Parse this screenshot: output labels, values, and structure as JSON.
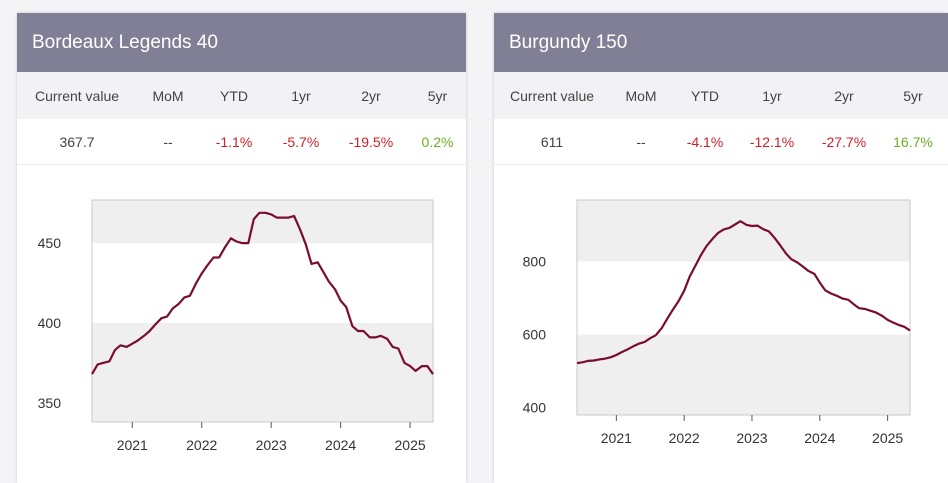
{
  "columns": [
    "Current value",
    "MoM",
    "YTD",
    "1yr",
    "2yr",
    "5yr"
  ],
  "colors": {
    "header_bg": "#807f96",
    "line": "#7a0c2e",
    "negative": "#d0202a",
    "positive": "#6ab023"
  },
  "panels": [
    {
      "title": "Bordeaux Legends 40",
      "stats": {
        "current": "367.7",
        "mom": "--",
        "ytd": "-1.1%",
        "yr1": "-5.7%",
        "yr2": "-19.5%",
        "yr5": "0.2%"
      }
    },
    {
      "title": "Burgundy 150",
      "stats": {
        "current": "611",
        "mom": "--",
        "ytd": "-4.1%",
        "yr1": "-12.1%",
        "yr2": "-27.7%",
        "yr5": "16.7%"
      }
    }
  ],
  "chart_data": [
    {
      "type": "line",
      "title": "Bordeaux Legends 40",
      "xlim": [
        2020.42,
        2025.33
      ],
      "ylim": [
        338,
        477
      ],
      "yticks": [
        350,
        400,
        450
      ],
      "xticks": [
        2021,
        2022,
        2023,
        2024,
        2025
      ],
      "grid": "alternating bands",
      "x": [
        2020.42,
        2020.5,
        2020.58,
        2020.67,
        2020.75,
        2020.83,
        2020.92,
        2021.0,
        2021.08,
        2021.17,
        2021.25,
        2021.33,
        2021.42,
        2021.5,
        2021.58,
        2021.67,
        2021.75,
        2021.83,
        2021.92,
        2022.0,
        2022.08,
        2022.17,
        2022.25,
        2022.33,
        2022.42,
        2022.5,
        2022.58,
        2022.67,
        2022.75,
        2022.83,
        2022.92,
        2023.0,
        2023.08,
        2023.17,
        2023.25,
        2023.33,
        2023.42,
        2023.5,
        2023.58,
        2023.67,
        2023.75,
        2023.83,
        2023.92,
        2024.0,
        2024.08,
        2024.17,
        2024.25,
        2024.33,
        2024.42,
        2024.5,
        2024.58,
        2024.67,
        2024.75,
        2024.83,
        2024.92,
        2025.0,
        2025.08,
        2025.17,
        2025.25,
        2025.33
      ],
      "series": [
        {
          "values": [
            368,
            374,
            375,
            376,
            383,
            386,
            385,
            387,
            389,
            392,
            395,
            399,
            403,
            404,
            409,
            412,
            416,
            417,
            425,
            431,
            436,
            441,
            441,
            447,
            453,
            451,
            450,
            450,
            465,
            469,
            469,
            468,
            466,
            466,
            466,
            467,
            458,
            449,
            437,
            438,
            432,
            426,
            421,
            414,
            410,
            398,
            395,
            395,
            391,
            391,
            392,
            390,
            385,
            384,
            375,
            373,
            370,
            373,
            373,
            368
          ]
        }
      ]
    },
    {
      "type": "line",
      "title": "Burgundy 150",
      "xlim": [
        2020.42,
        2025.33
      ],
      "ylim": [
        380,
        968
      ],
      "yticks": [
        400,
        600,
        800
      ],
      "xticks": [
        2021,
        2022,
        2023,
        2024,
        2025
      ],
      "grid": "alternating bands",
      "x": [
        2020.42,
        2020.5,
        2020.58,
        2020.67,
        2020.75,
        2020.83,
        2020.92,
        2021.0,
        2021.08,
        2021.17,
        2021.25,
        2021.33,
        2021.42,
        2021.5,
        2021.58,
        2021.67,
        2021.75,
        2021.83,
        2021.92,
        2022.0,
        2022.08,
        2022.17,
        2022.25,
        2022.33,
        2022.42,
        2022.5,
        2022.58,
        2022.67,
        2022.75,
        2022.83,
        2022.92,
        2023.0,
        2023.08,
        2023.17,
        2023.25,
        2023.33,
        2023.42,
        2023.5,
        2023.58,
        2023.67,
        2023.75,
        2023.83,
        2023.92,
        2024.0,
        2024.08,
        2024.17,
        2024.25,
        2024.33,
        2024.42,
        2024.5,
        2024.58,
        2024.67,
        2024.75,
        2024.83,
        2024.92,
        2025.0,
        2025.08,
        2025.17,
        2025.25,
        2025.33
      ],
      "series": [
        {
          "values": [
            522,
            524,
            528,
            529,
            532,
            534,
            538,
            544,
            552,
            560,
            568,
            575,
            580,
            590,
            598,
            618,
            643,
            667,
            692,
            720,
            758,
            790,
            818,
            842,
            862,
            878,
            887,
            892,
            901,
            910,
            900,
            897,
            898,
            888,
            882,
            865,
            843,
            822,
            806,
            797,
            786,
            774,
            766,
            742,
            721,
            712,
            706,
            699,
            695,
            683,
            672,
            670,
            665,
            660,
            651,
            640,
            633,
            626,
            621,
            611
          ]
        }
      ]
    }
  ]
}
